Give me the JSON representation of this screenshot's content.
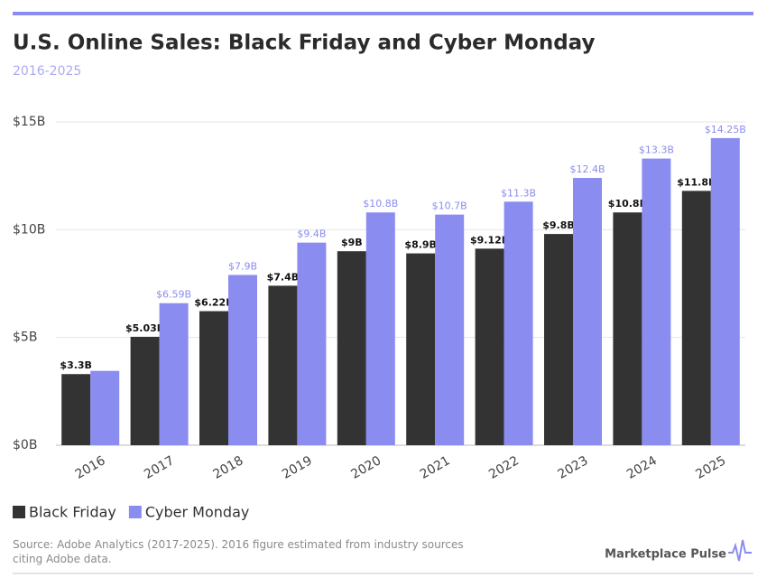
{
  "chart_data": {
    "type": "bar",
    "title": "U.S. Online Sales: Black Friday and Cyber Monday",
    "subtitle": "2016-2025",
    "categories": [
      "2016",
      "2017",
      "2018",
      "2019",
      "2020",
      "2021",
      "2022",
      "2023",
      "2024",
      "2025"
    ],
    "series": [
      {
        "name": "Black Friday",
        "color": "#333333",
        "values": [
          3.3,
          5.03,
          6.22,
          7.4,
          9,
          8.9,
          9.12,
          9.8,
          10.8,
          11.8
        ],
        "value_labels": [
          "$3.3B",
          "$5.03B",
          "$6.22B",
          "$7.4B",
          "$9B",
          "$8.9B",
          "$9.12B",
          "$9.8B",
          "$10.8B",
          "$11.8B"
        ]
      },
      {
        "name": "Cyber Monday",
        "color": "#8b8cf0",
        "values": [
          3.45,
          6.59,
          7.9,
          9.4,
          10.8,
          10.7,
          11.3,
          12.4,
          13.3,
          14.25
        ],
        "value_labels": [
          null,
          "$6.59B",
          "$7.9B",
          "$9.4B",
          "$10.8B",
          "$10.7B",
          "$11.3B",
          "$12.4B",
          "$13.3B",
          "$14.25B"
        ]
      }
    ],
    "ylim": [
      0,
      15
    ],
    "yticks": [
      {
        "value": 0,
        "label": "$0B"
      },
      {
        "value": 5,
        "label": "$5B"
      },
      {
        "value": 10,
        "label": "$10B"
      },
      {
        "value": 15,
        "label": "$15B"
      }
    ],
    "grid": true,
    "source": "Source: Adobe Analytics (2017-2025). 2016 figure estimated from industry sources citing Adobe data.",
    "brand": "Marketplace Pulse"
  }
}
